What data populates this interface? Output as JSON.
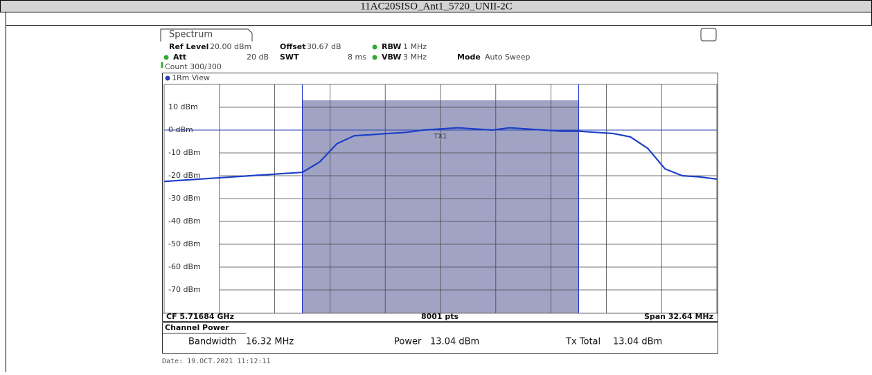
{
  "chart_data": {
    "type": "line",
    "title": "11AC20SISO_Ant1_5720_UNII-2C",
    "tab": "Spectrum",
    "settings": {
      "ref_level_label": "Ref Level",
      "ref_level": "20.00 dBm",
      "offset_label": "Offset",
      "offset": "30.67 dB",
      "rbw_label": "RBW",
      "rbw": "1 MHz",
      "att_label": "Att",
      "att": "20 dB",
      "swt_label": "SWT",
      "swt": "8 ms",
      "vbw_label": "VBW",
      "vbw": "3 MHz",
      "mode_label": "Mode",
      "mode": "Auto Sweep",
      "count": "Count 300/300"
    },
    "view_label": "1Rm View",
    "footer": {
      "cf": "CF 5.71684 GHz",
      "pts": "8001 pts",
      "span": "Span 32.64 MHz"
    },
    "channel_power": {
      "title": "Channel Power",
      "bandwidth_label": "Bandwidth",
      "bandwidth": "16.32 MHz",
      "power_label": "Power",
      "power": {
        "value": 13.04,
        "label": "13.04 dBm"
      },
      "tx_total_label": "Tx Total",
      "tx_total": "13.04 dBm"
    },
    "date": "Date: 19.OCT.2021  11:12:11",
    "tx_line": {
      "label": "TX1",
      "value": 0
    },
    "channel_edges": [
      5.70868,
      5.725
    ],
    "xlim": [
      5.70052,
      5.73316
    ],
    "ylim": [
      -80,
      20
    ],
    "yticks": [
      {
        "value": 10,
        "label": "10 dBm"
      },
      {
        "value": 0,
        "label": "0 dBm"
      },
      {
        "value": -10,
        "label": "-10 dBm"
      },
      {
        "value": -20,
        "label": "-20 dBm"
      },
      {
        "value": -30,
        "label": "-30 dBm"
      },
      {
        "value": -40,
        "label": "-40 dBm"
      },
      {
        "value": -50,
        "label": "-50 dBm"
      },
      {
        "value": -60,
        "label": "-60 dBm"
      },
      {
        "value": -70,
        "label": "-70 dBm"
      }
    ],
    "grid": true,
    "series": [
      {
        "name": "1Rm",
        "color": "#1c3fc8",
        "x": [
          5.70052,
          5.70154,
          5.70256,
          5.70358,
          5.7046,
          5.70562,
          5.70664,
          5.70766,
          5.70868,
          5.7097,
          5.71072,
          5.71174,
          5.71276,
          5.71378,
          5.7148,
          5.71582,
          5.71684,
          5.71786,
          5.71888,
          5.7199,
          5.72092,
          5.72194,
          5.72296,
          5.72398,
          5.725,
          5.72602,
          5.72704,
          5.72806,
          5.72908,
          5.7301,
          5.73112,
          5.73214,
          5.73316
        ],
        "values": [
          -22.5,
          -22,
          -21.5,
          -21,
          -20.5,
          -20,
          -19.5,
          -19,
          -18.5,
          -14,
          -6,
          -2.5,
          -2,
          -1.5,
          -1,
          0,
          0.5,
          1,
          0.5,
          0,
          1,
          0.5,
          0,
          -0.5,
          -0.5,
          -1,
          -1.5,
          -3,
          -8,
          -17,
          -20,
          -20.5,
          -21.5
        ]
      }
    ]
  }
}
